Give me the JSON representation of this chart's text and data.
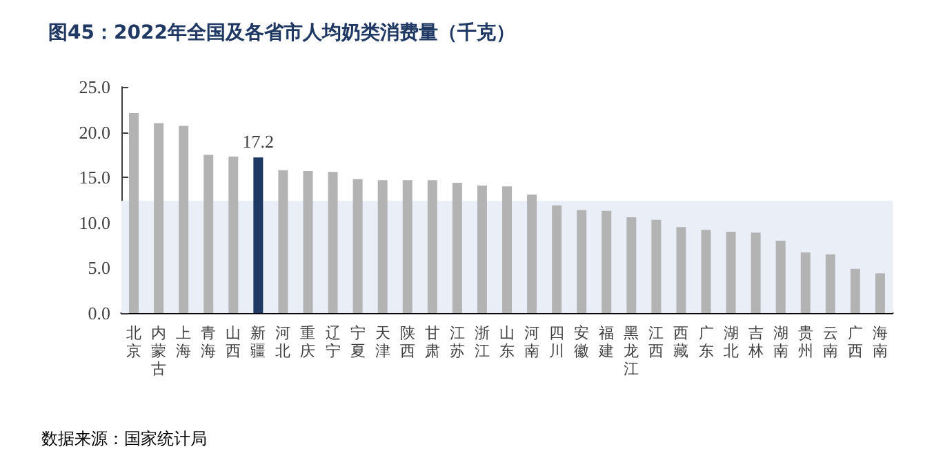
{
  "chart_data": {
    "type": "bar",
    "title": "图45：2022年全国及各省市人均奶类消费量（千克）",
    "categories": [
      "北京",
      "内蒙古",
      "上海",
      "青海",
      "山西",
      "新疆",
      "河北",
      "重庆",
      "辽宁",
      "宁夏",
      "天津",
      "陕西",
      "甘肃",
      "江苏",
      "浙江",
      "山东",
      "河南",
      "四川",
      "安徽",
      "福建",
      "黑龙江",
      "江西",
      "西藏",
      "广东",
      "湖北",
      "吉林",
      "湖南",
      "贵州",
      "云南",
      "广西",
      "海南"
    ],
    "values": [
      22.1,
      21.0,
      20.7,
      17.5,
      17.3,
      17.2,
      15.8,
      15.7,
      15.6,
      14.8,
      14.7,
      14.7,
      14.7,
      14.4,
      14.1,
      14.0,
      13.1,
      11.9,
      11.4,
      11.3,
      10.6,
      10.3,
      9.5,
      9.2,
      9.0,
      8.9,
      8.0,
      6.7,
      6.5,
      4.9,
      4.4
    ],
    "colors": [
      "#b3b3b3",
      "#b3b3b3",
      "#b3b3b3",
      "#b3b3b3",
      "#b3b3b3",
      "#1f3864",
      "#b3b3b3",
      "#b3b3b3",
      "#b3b3b3",
      "#b3b3b3",
      "#b3b3b3",
      "#b3b3b3",
      "#b3b3b3",
      "#b3b3b3",
      "#b3b3b3",
      "#b3b3b3",
      "#b3b3b3",
      "#b3b3b3",
      "#b3b3b3",
      "#b3b3b3",
      "#b3b3b3",
      "#b3b3b3",
      "#b3b3b3",
      "#b3b3b3",
      "#b3b3b3",
      "#b3b3b3",
      "#b3b3b3",
      "#b3b3b3",
      "#b3b3b3",
      "#b3b3b3",
      "#b3b3b3"
    ],
    "value_labels": [
      null,
      null,
      null,
      null,
      null,
      "17.2",
      null,
      null,
      null,
      null,
      null,
      null,
      null,
      null,
      null,
      null,
      null,
      null,
      null,
      null,
      null,
      null,
      null,
      null,
      null,
      null,
      null,
      null,
      null,
      null,
      null
    ],
    "ylim": [
      0,
      25
    ],
    "yticks": [
      {
        "value": 0,
        "label": "0.0"
      },
      {
        "value": 5,
        "label": "5.0"
      },
      {
        "value": 10,
        "label": "10.0"
      },
      {
        "value": 15,
        "label": "15.0"
      },
      {
        "value": 20,
        "label": "20.0"
      },
      {
        "value": 25,
        "label": "25.0"
      }
    ],
    "bands": [
      {
        "axis": "y",
        "from": 0,
        "to": 12.4,
        "color": "#e9eef7"
      }
    ],
    "grid": false,
    "annotations": [
      "数据来源：国家统计局"
    ]
  }
}
